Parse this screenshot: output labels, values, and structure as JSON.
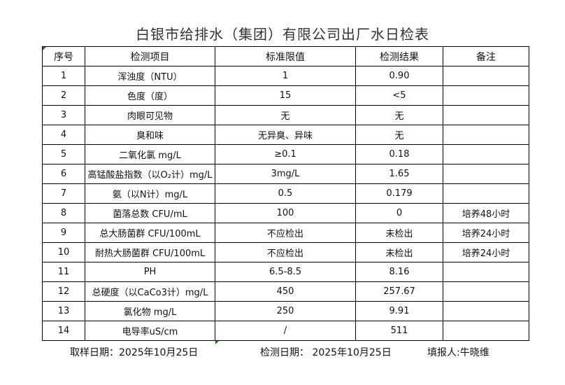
{
  "title": "白银市给排水（集团）有限公司出厂水日检表",
  "table": {
    "headers": [
      "序号",
      "检测项目",
      "标准限值",
      "检测结果",
      "备注"
    ],
    "rows": [
      [
        "1",
        "浑浊度（NTU）",
        "1",
        "0.90",
        ""
      ],
      [
        "2",
        "色度（度）",
        "15",
        "<5",
        ""
      ],
      [
        "3",
        "肉眼可见物",
        "无",
        "无",
        ""
      ],
      [
        "4",
        "臭和味",
        "无异臭、异味",
        "无",
        ""
      ],
      [
        "5",
        "二氧化氯 mg/L",
        "≥0.1",
        "0.18",
        ""
      ],
      [
        "6",
        "高锰酸盐指数（以O₂计）mg/L",
        "3mg/L",
        "1.65",
        ""
      ],
      [
        "7",
        "氨（以N计）mg/L",
        "0.5",
        "0.179",
        ""
      ],
      [
        "8",
        "菌落总数 CFU/mL",
        "100",
        "0",
        "培养48小时"
      ],
      [
        "9",
        "总大肠菌群 CFU/100mL",
        "不应检出",
        "未检出",
        "培养24小时"
      ],
      [
        "10",
        "耐热大肠菌群 CFU/100mL",
        "不应检出",
        "未检出",
        "培养24小时"
      ],
      [
        "11",
        "PH",
        "6.5-8.5",
        "8.16",
        ""
      ],
      [
        "12",
        "总硬度（以CaCo3计）mg/L",
        "450",
        "257.67",
        ""
      ],
      [
        "13",
        "氯化物 mg/L",
        "250",
        "9.91",
        ""
      ],
      [
        "14",
        "电导率uS/cm",
        "/",
        "511",
        ""
      ]
    ]
  },
  "footer": {
    "sampling_date": "取样日期：2025年10月25日",
    "test_date": "检测日期：  2025年10月25日",
    "reporter": "填报人:牛晓维"
  }
}
